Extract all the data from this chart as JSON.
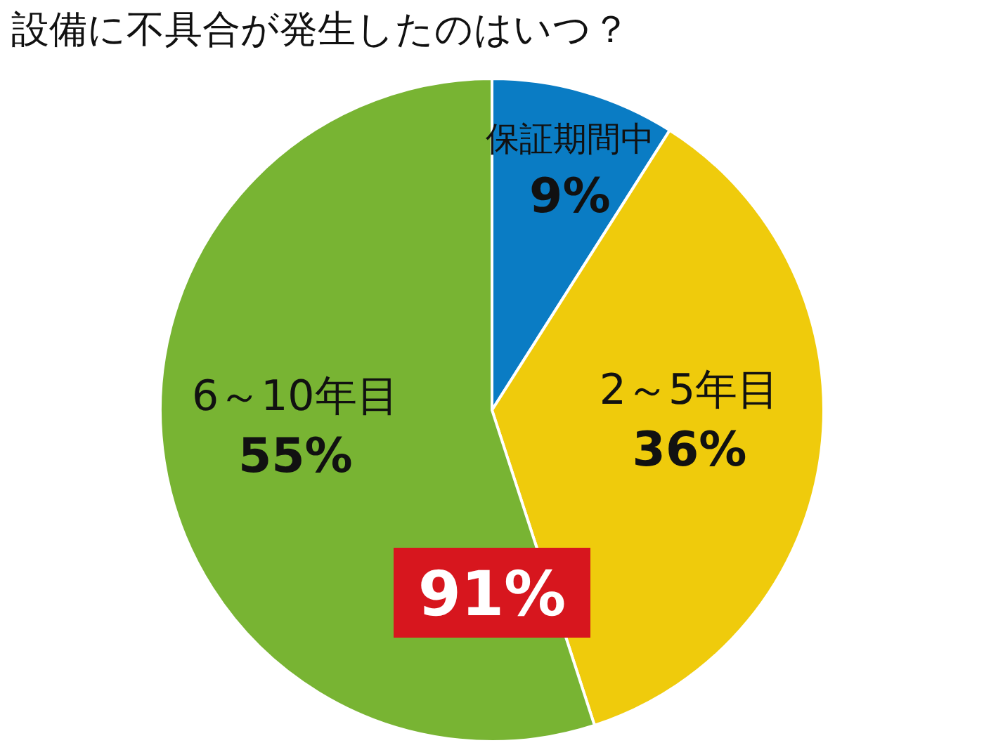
{
  "chart_data": {
    "type": "pie",
    "title": "設備に不具合が発生したのはいつ？",
    "categories": [
      "保証期間中",
      "2～5年目",
      "6～10年目"
    ],
    "values": [
      9,
      36,
      55
    ],
    "value_labels": [
      "9%",
      "36%",
      "55%"
    ],
    "colors": [
      "#0a7cc4",
      "#efcb0c",
      "#78b433"
    ],
    "annotations": [
      "91%"
    ]
  }
}
